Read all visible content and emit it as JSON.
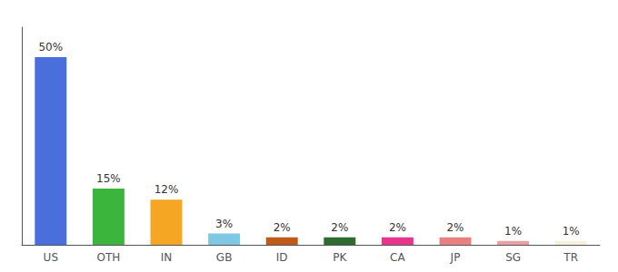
{
  "chart_data": {
    "type": "bar",
    "categories": [
      "US",
      "OTH",
      "IN",
      "GB",
      "ID",
      "PK",
      "CA",
      "JP",
      "SG",
      "TR"
    ],
    "values": [
      50,
      15,
      12,
      3,
      2,
      2,
      2,
      2,
      1,
      1
    ],
    "value_labels": [
      "50%",
      "15%",
      "12%",
      "3%",
      "2%",
      "2%",
      "2%",
      "2%",
      "1%",
      "1%"
    ],
    "colors": [
      "#4a6fdc",
      "#3cb53c",
      "#f5a623",
      "#7ec8e3",
      "#c05a18",
      "#2e6b2e",
      "#e8348b",
      "#e88080",
      "#e8a0a0",
      "#f5f0d8"
    ],
    "ylim": [
      0,
      58
    ],
    "grid": false,
    "data_labels": true,
    "tick_labels": "x"
  }
}
